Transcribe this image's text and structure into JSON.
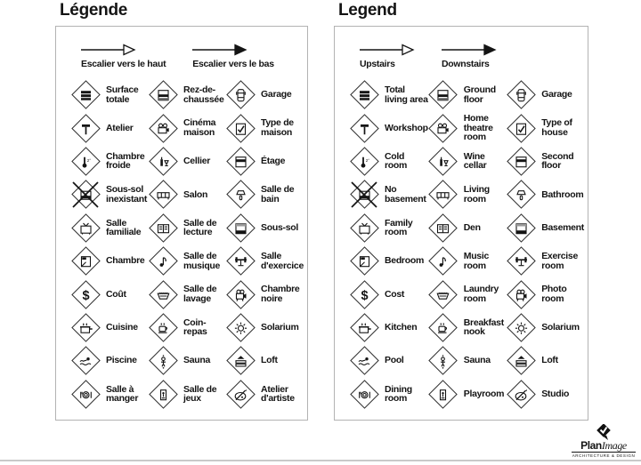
{
  "colors": {
    "box_border": "#b3b3b3",
    "icon_stroke": "#141414",
    "text": "#141414",
    "arrow_fill_down": "#141414"
  },
  "panels": [
    {
      "id": "fr",
      "title": "Légende",
      "arrows": {
        "up_label": "Escalier vers le haut",
        "down_label": "Escalier vers le bas"
      },
      "items": [
        {
          "icon": "total-area-icon",
          "label": "Surface totale"
        },
        {
          "icon": "ground-floor-icon",
          "label": "Rez-de-chaussée"
        },
        {
          "icon": "garage-icon",
          "label": "Garage"
        },
        {
          "icon": "hammer-icon",
          "label": "Atelier"
        },
        {
          "icon": "projector-icon",
          "label": "Cinéma maison"
        },
        {
          "icon": "house-check-icon",
          "label": "Type de maison"
        },
        {
          "icon": "thermometer-icon",
          "label": "Chambre froide"
        },
        {
          "icon": "wine-icon",
          "label": "Cellier"
        },
        {
          "icon": "second-floor-icon",
          "label": "Étage"
        },
        {
          "icon": "no-basement-icon",
          "label": "Sous-sol inexistant",
          "crossed": true
        },
        {
          "icon": "sofa-icon",
          "label": "Salon"
        },
        {
          "icon": "shower-icon",
          "label": "Salle de bain"
        },
        {
          "icon": "tv-icon",
          "label": "Salle familiale"
        },
        {
          "icon": "books-icon",
          "label": "Salle de lecture"
        },
        {
          "icon": "basement-icon",
          "label": "Sous-sol"
        },
        {
          "icon": "bed-icon",
          "label": "Chambre"
        },
        {
          "icon": "music-note-icon",
          "label": "Salle de musique"
        },
        {
          "icon": "dumbbell-icon",
          "label": "Salle d'exercice"
        },
        {
          "icon": "dollar-icon",
          "label": "Coût"
        },
        {
          "icon": "laundry-icon",
          "label": "Salle de lavage"
        },
        {
          "icon": "camera-icon",
          "label": "Chambre noire"
        },
        {
          "icon": "pot-icon",
          "label": "Cuisine"
        },
        {
          "icon": "cup-icon",
          "label": "Coin-repas"
        },
        {
          "icon": "sun-icon",
          "label": "Solarium"
        },
        {
          "icon": "swimmer-icon",
          "label": "Piscine"
        },
        {
          "icon": "sauna-icon",
          "label": "Sauna"
        },
        {
          "icon": "loft-icon",
          "label": "Loft"
        },
        {
          "icon": "dining-icon",
          "label": "Salle à manger"
        },
        {
          "icon": "playroom-icon",
          "label": "Salle de jeux"
        },
        {
          "icon": "palette-icon",
          "label": "Atelier d'artiste"
        }
      ]
    },
    {
      "id": "en",
      "title": "Legend",
      "arrows": {
        "up_label": "Upstairs",
        "down_label": "Downstairs"
      },
      "items": [
        {
          "icon": "total-area-icon",
          "label": "Total living area"
        },
        {
          "icon": "ground-floor-icon",
          "label": "Ground floor"
        },
        {
          "icon": "garage-icon",
          "label": "Garage"
        },
        {
          "icon": "hammer-icon",
          "label": "Workshop"
        },
        {
          "icon": "projector-icon",
          "label": "Home theatre room"
        },
        {
          "icon": "house-check-icon",
          "label": "Type of house"
        },
        {
          "icon": "thermometer-icon",
          "label": "Cold room"
        },
        {
          "icon": "wine-icon",
          "label": "Wine cellar"
        },
        {
          "icon": "second-floor-icon",
          "label": "Second floor"
        },
        {
          "icon": "no-basement-icon",
          "label": "No basement",
          "crossed": true
        },
        {
          "icon": "sofa-icon",
          "label": "Living room"
        },
        {
          "icon": "shower-icon",
          "label": "Bathroom"
        },
        {
          "icon": "tv-icon",
          "label": "Family room"
        },
        {
          "icon": "books-icon",
          "label": "Den"
        },
        {
          "icon": "basement-icon",
          "label": "Basement"
        },
        {
          "icon": "bed-icon",
          "label": "Bedroom"
        },
        {
          "icon": "music-note-icon",
          "label": "Music room"
        },
        {
          "icon": "dumbbell-icon",
          "label": "Exercise room"
        },
        {
          "icon": "dollar-icon",
          "label": "Cost"
        },
        {
          "icon": "laundry-icon",
          "label": "Laundry room"
        },
        {
          "icon": "camera-icon",
          "label": "Photo room"
        },
        {
          "icon": "pot-icon",
          "label": "Kitchen"
        },
        {
          "icon": "cup-icon",
          "label": "Breakfast nook"
        },
        {
          "icon": "sun-icon",
          "label": "Solarium"
        },
        {
          "icon": "swimmer-icon",
          "label": "Pool"
        },
        {
          "icon": "sauna-icon",
          "label": "Sauna"
        },
        {
          "icon": "loft-icon",
          "label": "Loft"
        },
        {
          "icon": "dining-icon",
          "label": "Dining room"
        },
        {
          "icon": "playroom-icon",
          "label": "Playroom"
        },
        {
          "icon": "palette-icon",
          "label": "Studio"
        }
      ]
    }
  ],
  "footer": {
    "logo_plan": "Plan",
    "logo_image": "Image",
    "logo_tagline": "ARCHITECTURE & DESIGN"
  }
}
